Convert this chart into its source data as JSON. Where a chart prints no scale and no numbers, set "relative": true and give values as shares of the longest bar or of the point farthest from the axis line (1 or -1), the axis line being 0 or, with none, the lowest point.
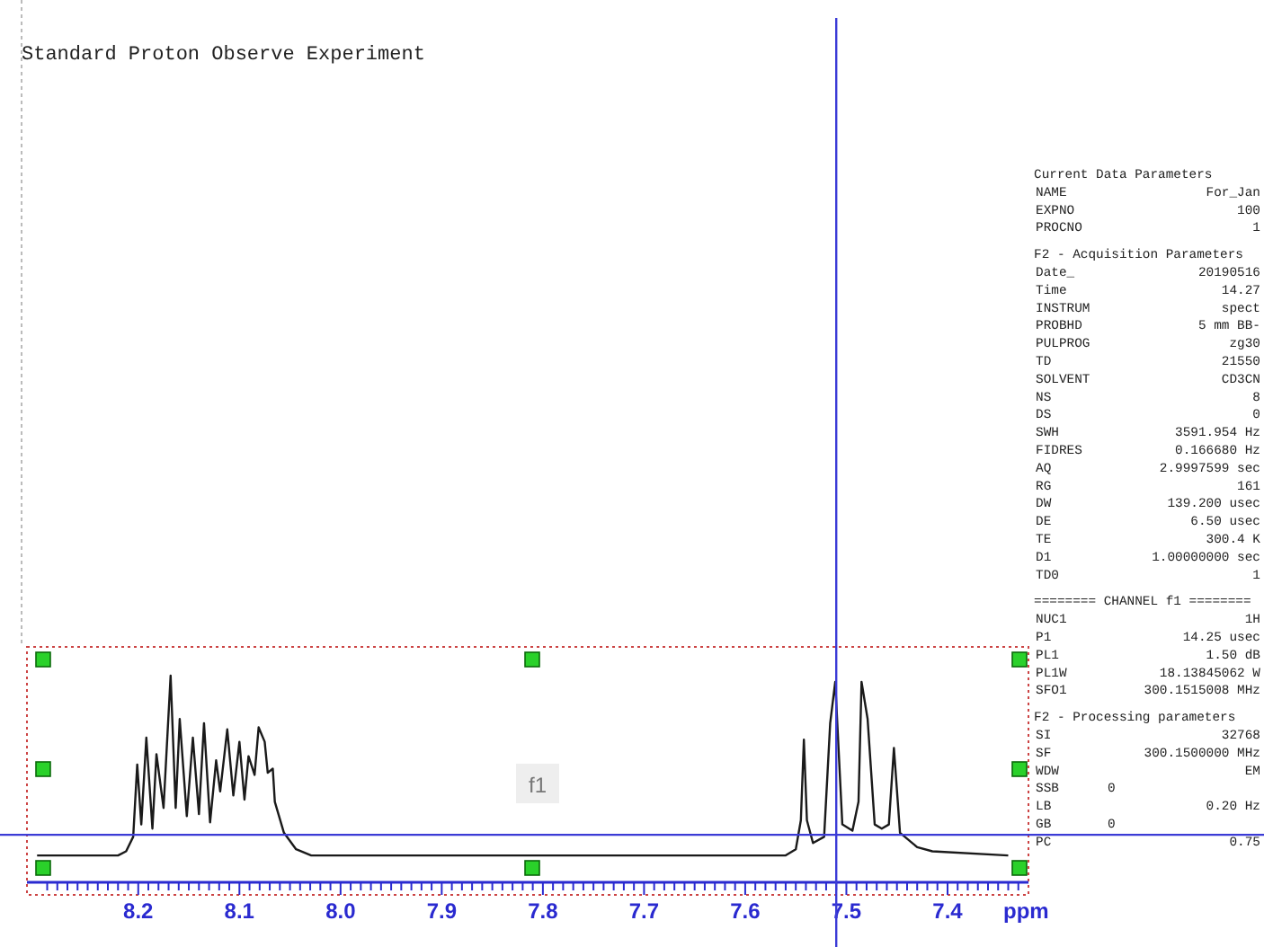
{
  "chart_data": {
    "type": "line",
    "title": "Standard Proton Observe Experiment",
    "xlabel": "ppm",
    "relative": true,
    "color": "#1a1a1a",
    "line_style": "solid",
    "x": [
      8.3,
      8.22,
      8.212,
      8.205,
      8.201,
      8.197,
      8.192,
      8.186,
      8.182,
      8.175,
      8.168,
      8.163,
      8.159,
      8.152,
      8.146,
      8.14,
      8.135,
      8.129,
      8.123,
      8.119,
      8.112,
      8.106,
      8.1,
      8.095,
      8.091,
      8.085,
      8.081,
      8.075,
      8.072,
      8.067,
      8.065,
      8.056,
      8.044,
      8.029,
      7.9,
      7.8,
      7.7,
      7.6,
      7.56,
      7.55,
      7.545,
      7.542,
      7.539,
      7.533,
      7.522,
      7.516,
      7.511,
      7.504,
      7.494,
      7.488,
      7.485,
      7.479,
      7.472,
      7.465,
      7.458,
      7.453,
      7.447,
      7.43,
      7.415,
      7.34
    ],
    "values": [
      0.13,
      0.13,
      0.15,
      0.22,
      0.57,
      0.28,
      0.7,
      0.26,
      0.62,
      0.36,
      1,
      0.36,
      0.79,
      0.32,
      0.7,
      0.33,
      0.77,
      0.29,
      0.59,
      0.44,
      0.74,
      0.42,
      0.68,
      0.4,
      0.61,
      0.52,
      0.75,
      0.68,
      0.53,
      0.55,
      0.39,
      0.24,
      0.16,
      0.13,
      0.13,
      0.13,
      0.13,
      0.13,
      0.13,
      0.16,
      0.3,
      0.69,
      0.3,
      0.19,
      0.22,
      0.77,
      0.97,
      0.28,
      0.25,
      0.39,
      0.97,
      0.79,
      0.28,
      0.26,
      0.28,
      0.65,
      0.24,
      0.17,
      0.15,
      0.13
    ],
    "xlim": [
      8.31,
      7.32
    ],
    "xticks": [
      {
        "value": 8.29,
        "label": null
      },
      {
        "value": 8.28,
        "label": null
      },
      {
        "value": 8.27,
        "label": null
      },
      {
        "value": 8.26,
        "label": null
      },
      {
        "value": 8.25,
        "label": null
      },
      {
        "value": 8.24,
        "label": null
      },
      {
        "value": 8.23,
        "label": null
      },
      {
        "value": 8.22,
        "label": null
      },
      {
        "value": 8.21,
        "label": null
      },
      8.2,
      {
        "value": 8.19,
        "label": null
      },
      {
        "value": 8.18,
        "label": null
      },
      {
        "value": 8.17,
        "label": null
      },
      {
        "value": 8.16,
        "label": null
      },
      {
        "value": 8.15,
        "label": null
      },
      {
        "value": 8.14,
        "label": null
      },
      {
        "value": 8.13,
        "label": null
      },
      {
        "value": 8.12,
        "label": null
      },
      {
        "value": 8.11,
        "label": null
      },
      8.1,
      {
        "value": 8.09,
        "label": null
      },
      {
        "value": 8.08,
        "label": null
      },
      {
        "value": 8.07,
        "label": null
      },
      {
        "value": 8.06,
        "label": null
      },
      {
        "value": 8.05,
        "label": null
      },
      {
        "value": 8.04,
        "label": null
      },
      {
        "value": 8.03,
        "label": null
      },
      {
        "value": 8.02,
        "label": null
      },
      {
        "value": 8.01,
        "label": null
      },
      {
        "value": 8,
        "label": "8.0"
      },
      {
        "value": 7.99,
        "label": null
      },
      {
        "value": 7.98,
        "label": null
      },
      {
        "value": 7.97,
        "label": null
      },
      {
        "value": 7.96,
        "label": null
      },
      {
        "value": 7.95,
        "label": null
      },
      {
        "value": 7.94,
        "label": null
      },
      {
        "value": 7.93,
        "label": null
      },
      {
        "value": 7.92,
        "label": null
      },
      {
        "value": 7.91,
        "label": null
      },
      7.9,
      {
        "value": 7.89,
        "label": null
      },
      {
        "value": 7.88,
        "label": null
      },
      {
        "value": 7.87,
        "label": null
      },
      {
        "value": 7.86,
        "label": null
      },
      {
        "value": 7.85,
        "label": null
      },
      {
        "value": 7.84,
        "label": null
      },
      {
        "value": 7.83,
        "label": null
      },
      {
        "value": 7.82,
        "label": null
      },
      {
        "value": 7.81,
        "label": null
      },
      7.8,
      {
        "value": 7.79,
        "label": null
      },
      {
        "value": 7.78,
        "label": null
      },
      {
        "value": 7.77,
        "label": null
      },
      {
        "value": 7.76,
        "label": null
      },
      {
        "value": 7.75,
        "label": null
      },
      {
        "value": 7.74,
        "label": null
      },
      {
        "value": 7.73,
        "label": null
      },
      {
        "value": 7.72,
        "label": null
      },
      {
        "value": 7.71,
        "label": null
      },
      7.7,
      {
        "value": 7.69,
        "label": null
      },
      {
        "value": 7.68,
        "label": null
      },
      {
        "value": 7.67,
        "label": null
      },
      {
        "value": 7.66,
        "label": null
      },
      {
        "value": 7.65,
        "label": null
      },
      {
        "value": 7.64,
        "label": null
      },
      {
        "value": 7.63,
        "label": null
      },
      {
        "value": 7.62,
        "label": null
      },
      {
        "value": 7.61,
        "label": null
      },
      7.6,
      {
        "value": 7.59,
        "label": null
      },
      {
        "value": 7.58,
        "label": null
      },
      {
        "value": 7.57,
        "label": null
      },
      {
        "value": 7.56,
        "label": null
      },
      {
        "value": 7.55,
        "label": null
      },
      {
        "value": 7.54,
        "label": null
      },
      {
        "value": 7.53,
        "label": null
      },
      {
        "value": 7.52,
        "label": null
      },
      {
        "value": 7.51,
        "label": null
      },
      7.5,
      {
        "value": 7.49,
        "label": null
      },
      {
        "value": 7.48,
        "label": null
      },
      {
        "value": 7.47,
        "label": null
      },
      {
        "value": 7.46,
        "label": null
      },
      {
        "value": 7.45,
        "label": null
      },
      {
        "value": 7.44,
        "label": null
      },
      {
        "value": 7.43,
        "label": null
      },
      {
        "value": 7.42,
        "label": null
      },
      {
        "value": 7.41,
        "label": null
      },
      7.4,
      {
        "value": 7.39,
        "label": null
      },
      {
        "value": 7.38,
        "label": null
      },
      {
        "value": 7.37,
        "label": null
      },
      {
        "value": 7.36,
        "label": null
      },
      {
        "value": 7.35,
        "label": null
      },
      {
        "value": 7.34,
        "label": null
      },
      {
        "value": 7.33,
        "label": null
      }
    ],
    "ref_lines": [
      {
        "axis": "x",
        "value": 7.51,
        "color": "#3b3bd6"
      },
      {
        "axis": "y",
        "value": 0.23,
        "color": "#3b3bd6"
      }
    ],
    "annotations": [
      "f1",
      "Current Data Parameters",
      "NAME",
      "For_Jan",
      "EXPNO",
      "100",
      "PROCNO",
      "1",
      "F2 - Acquisition Parameters",
      "Date_",
      "20190516",
      "Time",
      "14.27",
      "INSTRUM",
      "spect",
      "PROBHD",
      "5 mm BB-",
      "PULPROG",
      "zg30",
      "TD",
      "21550",
      "SOLVENT",
      "CD3CN",
      "NS",
      "8",
      "DS",
      "0",
      "SWH",
      "3591.954 Hz",
      "FIDRES",
      "0.166680 Hz",
      "AQ",
      "2.9997599 sec",
      "RG",
      "161",
      "DW",
      "139.200 usec",
      "DE",
      "6.50 usec",
      "TE",
      "300.4 K",
      "D1",
      "1.00000000 sec",
      "TD0",
      "1",
      "======== CHANNEL f1 ========",
      "NUC1",
      "1H",
      "P1",
      "14.25 usec",
      "PL1",
      "1.50 dB",
      "PL1W",
      "18.13845062 W",
      "SFO1",
      "300.1515008 MHz",
      "F2 - Processing parameters",
      "SI",
      "32768",
      "SF",
      "300.1500000 MHz",
      "WDW",
      "EM",
      "SSB",
      "0",
      "LB",
      "0.20 Hz",
      "GB",
      "0",
      "PC",
      "0.75"
    ]
  }
}
